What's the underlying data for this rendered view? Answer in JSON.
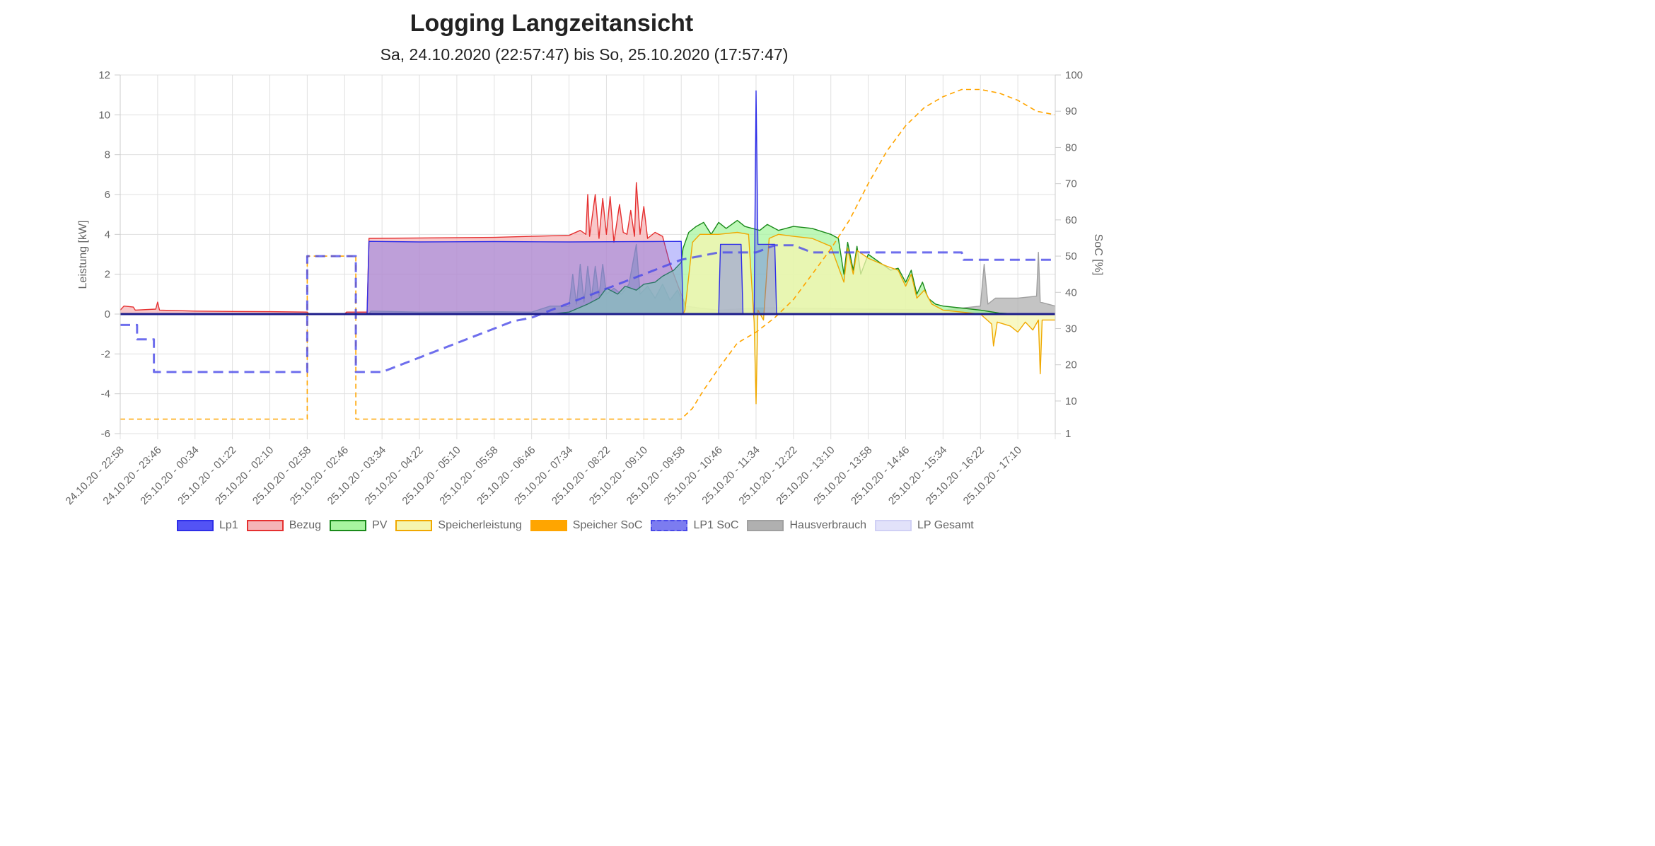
{
  "title": "Logging Langzeitansicht",
  "subtitle": "Sa, 24.10.2020 (22:57:47) bis So, 25.10.2020 (17:57:47)",
  "chart_data": {
    "type": "line",
    "ylabel": "Leistung [kW]",
    "y2label": "SoC [%]",
    "ylim": [
      -6,
      12
    ],
    "y2lim": [
      1,
      100
    ],
    "yticks": [
      "12",
      "10",
      "8",
      "6",
      "4",
      "2",
      "0",
      "-2",
      "-4",
      "-6"
    ],
    "y2ticks": [
      "100",
      "90",
      "80",
      "70",
      "60",
      "50",
      "40",
      "30",
      "20",
      "10",
      "1"
    ],
    "xticks": [
      "24.10.20 - 22:58",
      "24.10.20 - 23:46",
      "25.10.20 - 00:34",
      "25.10.20 - 01:22",
      "25.10.20 - 02:10",
      "25.10.20 - 02:58",
      "25.10.20 - 02:46",
      "25.10.20 - 03:34",
      "25.10.20 - 04:22",
      "25.10.20 - 05:10",
      "25.10.20 - 05:58",
      "25.10.20 - 06:46",
      "25.10.20 - 07:34",
      "25.10.20 - 08:22",
      "25.10.20 - 09:10",
      "25.10.20 - 09:58",
      "25.10.20 - 10:46",
      "25.10.20 - 11:34",
      "25.10.20 - 12:22",
      "25.10.20 - 13:10",
      "25.10.20 - 13:58",
      "25.10.20 - 14:46",
      "25.10.20 - 15:34",
      "25.10.20 - 16:22",
      "25.10.20 - 17:10"
    ],
    "x_index_range": [
      0,
      25
    ],
    "series": [
      {
        "name": "Lp1",
        "axis": "left",
        "fill": true,
        "points": [
          [
            0,
            0
          ],
          [
            6.6,
            0
          ],
          [
            6.65,
            3.65
          ],
          [
            8,
            3.62
          ],
          [
            10,
            3.64
          ],
          [
            12,
            3.62
          ],
          [
            14,
            3.64
          ],
          [
            15.0,
            3.65
          ],
          [
            15.05,
            0
          ],
          [
            16.0,
            0
          ],
          [
            16.05,
            3.5
          ],
          [
            16.6,
            3.5
          ],
          [
            16.65,
            0
          ],
          [
            16.95,
            0
          ],
          [
            17.0,
            11.2
          ],
          [
            17.05,
            3.5
          ],
          [
            17.5,
            3.5
          ],
          [
            17.55,
            0
          ],
          [
            25,
            0
          ]
        ]
      },
      {
        "name": "Bezug",
        "axis": "left",
        "fill": true,
        "points": [
          [
            0,
            0.2
          ],
          [
            0.1,
            0.4
          ],
          [
            0.35,
            0.35
          ],
          [
            0.4,
            0.2
          ],
          [
            0.95,
            0.25
          ],
          [
            1.0,
            0.6
          ],
          [
            1.05,
            0.2
          ],
          [
            2,
            0.15
          ],
          [
            3,
            0.13
          ],
          [
            4,
            0.12
          ],
          [
            5,
            0.1
          ],
          [
            5.05,
            0
          ],
          [
            6.0,
            0
          ],
          [
            6.05,
            0.1
          ],
          [
            6.6,
            0.1
          ],
          [
            6.65,
            3.8
          ],
          [
            8,
            3.82
          ],
          [
            10,
            3.85
          ],
          [
            11,
            3.9
          ],
          [
            12,
            3.95
          ],
          [
            12.3,
            4.2
          ],
          [
            12.45,
            4.0
          ],
          [
            12.5,
            6.0
          ],
          [
            12.55,
            3.9
          ],
          [
            12.7,
            6.0
          ],
          [
            12.8,
            3.8
          ],
          [
            12.9,
            5.8
          ],
          [
            13.0,
            4.0
          ],
          [
            13.1,
            5.9
          ],
          [
            13.2,
            3.6
          ],
          [
            13.35,
            5.5
          ],
          [
            13.45,
            4.1
          ],
          [
            13.55,
            4.0
          ],
          [
            13.65,
            5.2
          ],
          [
            13.75,
            3.9
          ],
          [
            13.8,
            6.6
          ],
          [
            13.9,
            4.0
          ],
          [
            14.0,
            5.4
          ],
          [
            14.1,
            3.8
          ],
          [
            14.3,
            4.1
          ],
          [
            14.5,
            3.9
          ],
          [
            14.7,
            2.5
          ],
          [
            14.9,
            1.5
          ],
          [
            15.1,
            0.5
          ],
          [
            15.2,
            0
          ],
          [
            25,
            0
          ]
        ]
      },
      {
        "name": "PV",
        "axis": "left",
        "fill": true,
        "points": [
          [
            0,
            0
          ],
          [
            11.5,
            0
          ],
          [
            12,
            0.1
          ],
          [
            12.5,
            0.5
          ],
          [
            12.8,
            0.8
          ],
          [
            13,
            1.3
          ],
          [
            13.3,
            1.0
          ],
          [
            13.5,
            1.4
          ],
          [
            13.8,
            1.2
          ],
          [
            14.0,
            1.5
          ],
          [
            14.3,
            1.6
          ],
          [
            14.5,
            1.9
          ],
          [
            14.8,
            2.2
          ],
          [
            15.0,
            2.6
          ],
          [
            15.05,
            3.3
          ],
          [
            15.2,
            4.1
          ],
          [
            15.4,
            4.4
          ],
          [
            15.6,
            4.6
          ],
          [
            15.8,
            4.0
          ],
          [
            16.0,
            4.6
          ],
          [
            16.2,
            4.3
          ],
          [
            16.5,
            4.7
          ],
          [
            16.7,
            4.4
          ],
          [
            16.9,
            4.3
          ],
          [
            17.1,
            4.2
          ],
          [
            17.3,
            4.5
          ],
          [
            17.6,
            4.2
          ],
          [
            18,
            4.4
          ],
          [
            18.5,
            4.3
          ],
          [
            19,
            4.0
          ],
          [
            19.2,
            3.8
          ],
          [
            19.35,
            2.0
          ],
          [
            19.45,
            3.6
          ],
          [
            19.6,
            2.2
          ],
          [
            19.7,
            3.4
          ],
          [
            19.8,
            2.0
          ],
          [
            20,
            3.0
          ],
          [
            20.3,
            2.6
          ],
          [
            20.6,
            2.2
          ],
          [
            20.8,
            2.3
          ],
          [
            21.0,
            1.6
          ],
          [
            21.15,
            2.2
          ],
          [
            21.3,
            1.0
          ],
          [
            21.45,
            1.6
          ],
          [
            21.6,
            0.8
          ],
          [
            21.8,
            0.5
          ],
          [
            22,
            0.4
          ],
          [
            22.5,
            0.3
          ],
          [
            23,
            0.2
          ],
          [
            23.5,
            0.05
          ],
          [
            24,
            0
          ],
          [
            25,
            0
          ]
        ]
      },
      {
        "name": "Speicherleistung",
        "axis": "left",
        "fill": true,
        "points": [
          [
            0,
            0
          ],
          [
            15.05,
            0
          ],
          [
            15.1,
            0.2
          ],
          [
            15.3,
            3.6
          ],
          [
            15.5,
            4.0
          ],
          [
            16,
            4.0
          ],
          [
            16.5,
            4.1
          ],
          [
            16.8,
            4.0
          ],
          [
            16.95,
            -0.4
          ],
          [
            17.0,
            -4.5
          ],
          [
            17.05,
            0.2
          ],
          [
            17.2,
            -0.3
          ],
          [
            17.35,
            3.8
          ],
          [
            17.6,
            4.0
          ],
          [
            18,
            3.9
          ],
          [
            18.5,
            3.8
          ],
          [
            19,
            3.4
          ],
          [
            19.35,
            1.6
          ],
          [
            19.45,
            3.3
          ],
          [
            19.6,
            2.0
          ],
          [
            19.7,
            3.2
          ],
          [
            20,
            2.8
          ],
          [
            20.5,
            2.4
          ],
          [
            20.8,
            2.2
          ],
          [
            21,
            1.4
          ],
          [
            21.15,
            2.0
          ],
          [
            21.3,
            0.8
          ],
          [
            21.5,
            1.2
          ],
          [
            21.7,
            0.5
          ],
          [
            22,
            0.2
          ],
          [
            22.5,
            0.1
          ],
          [
            23,
            0
          ],
          [
            23.3,
            -0.5
          ],
          [
            23.35,
            -1.6
          ],
          [
            23.45,
            -0.4
          ],
          [
            23.8,
            -0.6
          ],
          [
            24.0,
            -0.9
          ],
          [
            24.2,
            -0.4
          ],
          [
            24.4,
            -0.8
          ],
          [
            24.55,
            -0.3
          ],
          [
            24.6,
            -3.0
          ],
          [
            24.65,
            -0.3
          ],
          [
            25,
            -0.3
          ]
        ]
      },
      {
        "name": "Speicher SoC",
        "axis": "right",
        "dashed": true,
        "points": [
          [
            0,
            5
          ],
          [
            5.0,
            5
          ],
          [
            5.0,
            50
          ],
          [
            6.3,
            50
          ],
          [
            6.3,
            5
          ],
          [
            15.0,
            5
          ],
          [
            15.3,
            8
          ],
          [
            15.6,
            13
          ],
          [
            16,
            19
          ],
          [
            16.5,
            26
          ],
          [
            17,
            29
          ],
          [
            17.5,
            33
          ],
          [
            18,
            38
          ],
          [
            18.5,
            45
          ],
          [
            19,
            52
          ],
          [
            19.5,
            60
          ],
          [
            20,
            70
          ],
          [
            20.5,
            79
          ],
          [
            21,
            86
          ],
          [
            21.5,
            91
          ],
          [
            22,
            94
          ],
          [
            22.5,
            96
          ],
          [
            23,
            96
          ],
          [
            23.5,
            95
          ],
          [
            24,
            93
          ],
          [
            24.5,
            90
          ],
          [
            25,
            89
          ]
        ]
      },
      {
        "name": "LP1 SoC",
        "axis": "right",
        "dashed": true,
        "points": [
          [
            0,
            31
          ],
          [
            0.45,
            31
          ],
          [
            0.45,
            27
          ],
          [
            0.9,
            27
          ],
          [
            0.9,
            18
          ],
          [
            5.0,
            18
          ],
          [
            5.0,
            50
          ],
          [
            6.3,
            50
          ],
          [
            6.3,
            18
          ],
          [
            7,
            18
          ],
          [
            7.5,
            20
          ],
          [
            8,
            22
          ],
          [
            8.5,
            24
          ],
          [
            9,
            26
          ],
          [
            9.5,
            28
          ],
          [
            10,
            30
          ],
          [
            10.5,
            32
          ],
          [
            11,
            33
          ],
          [
            11.5,
            35
          ],
          [
            12,
            37
          ],
          [
            12.5,
            39
          ],
          [
            13,
            41
          ],
          [
            13.5,
            43
          ],
          [
            14,
            45
          ],
          [
            14.5,
            47
          ],
          [
            15,
            49
          ],
          [
            15.5,
            50
          ],
          [
            16,
            51
          ],
          [
            17,
            51
          ],
          [
            17.5,
            53
          ],
          [
            18,
            53
          ],
          [
            18.5,
            51
          ],
          [
            20,
            51
          ],
          [
            22,
            51
          ],
          [
            22.5,
            51
          ],
          [
            22.55,
            49
          ],
          [
            25,
            49
          ]
        ]
      },
      {
        "name": "Hausverbrauch",
        "axis": "left",
        "fill": true,
        "points": [
          [
            0,
            0
          ],
          [
            6.65,
            0
          ],
          [
            6.7,
            0.15
          ],
          [
            8,
            0.1
          ],
          [
            10,
            0.12
          ],
          [
            11,
            0.1
          ],
          [
            11.5,
            0.4
          ],
          [
            12,
            0.4
          ],
          [
            12.1,
            2.0
          ],
          [
            12.2,
            0.5
          ],
          [
            12.3,
            2.5
          ],
          [
            12.4,
            0.6
          ],
          [
            12.5,
            2.4
          ],
          [
            12.6,
            0.8
          ],
          [
            12.7,
            2.4
          ],
          [
            12.8,
            0.9
          ],
          [
            12.9,
            2.5
          ],
          [
            13.0,
            1.0
          ],
          [
            13.2,
            1.3
          ],
          [
            13.4,
            1.0
          ],
          [
            13.6,
            1.5
          ],
          [
            13.8,
            3.5
          ],
          [
            13.9,
            1.0
          ],
          [
            14.1,
            1.4
          ],
          [
            14.3,
            0.8
          ],
          [
            14.5,
            1.5
          ],
          [
            14.7,
            0.7
          ],
          [
            14.9,
            1.2
          ],
          [
            15.1,
            0.4
          ],
          [
            15.5,
            0.3
          ],
          [
            16,
            0.2
          ],
          [
            17,
            0.3
          ],
          [
            18,
            0.3
          ],
          [
            20,
            0.25
          ],
          [
            22,
            0.2
          ],
          [
            23,
            0.4
          ],
          [
            23.1,
            2.5
          ],
          [
            23.2,
            0.5
          ],
          [
            23.4,
            0.8
          ],
          [
            24,
            0.8
          ],
          [
            24.5,
            0.9
          ],
          [
            24.55,
            3.1
          ],
          [
            24.6,
            0.6
          ],
          [
            25,
            0.4
          ]
        ]
      }
    ]
  },
  "legend": [
    {
      "label": "Lp1",
      "fill": "#5353f5",
      "stroke": "#2e2ee8",
      "dashed": false
    },
    {
      "label": "Bezug",
      "fill": "#f5b5b8",
      "stroke": "#e53030",
      "dashed": false
    },
    {
      "label": "PV",
      "fill": "#a8f5a0",
      "stroke": "#1a8a1a",
      "dashed": false
    },
    {
      "label": "Speicherleistung",
      "fill": "#f5f5b0",
      "stroke": "#f0a800",
      "dashed": false
    },
    {
      "label": "Speicher SoC",
      "fill": "#ffa500",
      "stroke": "#ffa500",
      "dashed": true
    },
    {
      "label": "LP1 SoC",
      "fill": "#7c7cf0",
      "stroke": "#4a4ae8",
      "dashed": true
    },
    {
      "label": "Hausverbrauch",
      "fill": "#b0b0b0",
      "stroke": "#a0a0a0",
      "dashed": false
    },
    {
      "label": "LP Gesamt",
      "fill": "#e2e2fa",
      "stroke": "#d0d0f5",
      "dashed": false
    }
  ]
}
